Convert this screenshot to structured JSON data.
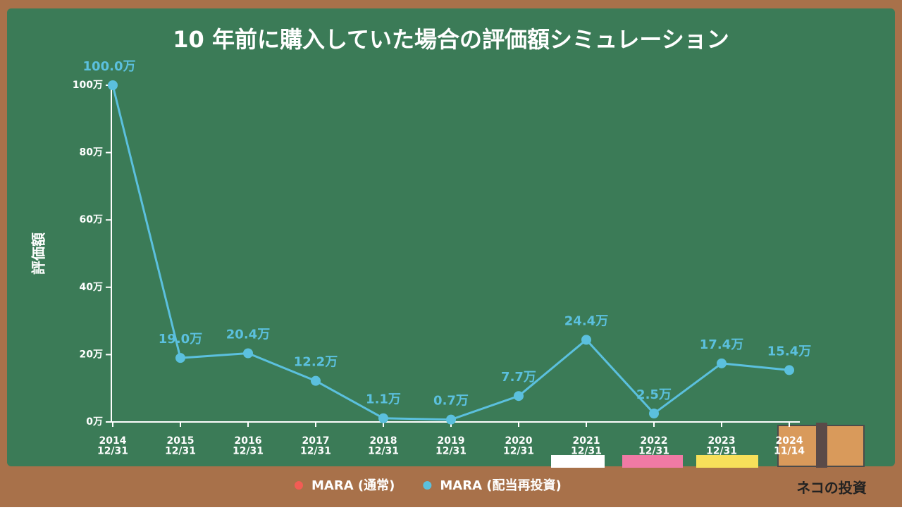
{
  "chart_data": {
    "type": "line",
    "title": "10 年前に購入していた場合の評価額シミュレーション",
    "y_label": "評価額",
    "categories": [
      "2014\n12/31",
      "2015\n12/31",
      "2016\n12/31",
      "2017\n12/31",
      "2018\n12/31",
      "2019\n12/31",
      "2020\n12/31",
      "2021\n12/31",
      "2022\n12/31",
      "2023\n12/31",
      "2024\n11/14"
    ],
    "series": [
      {
        "name": "MARA (通常)",
        "color": "#f25c54",
        "values": [
          null,
          null,
          null,
          null,
          null,
          null,
          null,
          null,
          null,
          null,
          null
        ]
      },
      {
        "name": "MARA (配当再投資)",
        "color": "#5bc0de",
        "values": [
          100.0,
          19.0,
          20.4,
          12.2,
          1.1,
          0.7,
          7.7,
          24.4,
          2.5,
          17.4,
          15.4
        ],
        "value_labels": [
          "100.0万",
          "19.0万",
          "20.4万",
          "12.2万",
          "1.1万",
          "0.7万",
          "7.7万",
          "24.4万",
          "2.5万",
          "17.4万",
          "15.4万"
        ]
      }
    ],
    "ylim": [
      0,
      100
    ],
    "yticks": [
      {
        "value": 0,
        "label": "0万"
      },
      {
        "value": 20,
        "label": "20万"
      },
      {
        "value": 40,
        "label": "40万"
      },
      {
        "value": 60,
        "label": "60万"
      },
      {
        "value": 80,
        "label": "80万"
      },
      {
        "value": 100,
        "label": "100万"
      }
    ],
    "brand": "ネコの投資"
  }
}
